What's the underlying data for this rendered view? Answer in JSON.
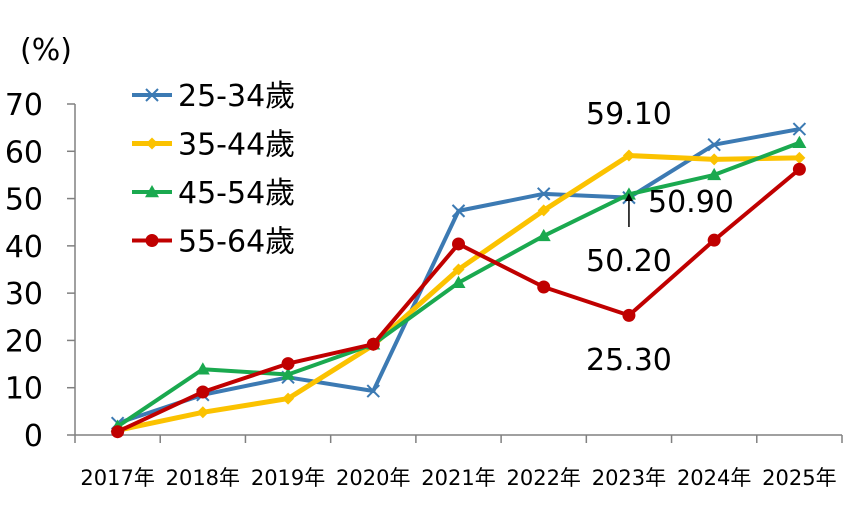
{
  "chart_data": {
    "type": "line",
    "unit": "(%)",
    "ylim": [
      0,
      70
    ],
    "yticks": [
      "0",
      "10",
      "20",
      "30",
      "40",
      "50",
      "60",
      "70"
    ],
    "categories": [
      "2017年",
      "2018年",
      "2019年",
      "2020年",
      "2021年",
      "2022年",
      "2023年",
      "2024年",
      "2025年"
    ],
    "legend_position": "top-left",
    "grid": false,
    "series": [
      {
        "name": "25-34歲",
        "color": "#3c7ab3",
        "marker": "x",
        "values": [
          2.5,
          8.5,
          12.2,
          9.3,
          47.4,
          51.0,
          50.2,
          61.4,
          64.7
        ]
      },
      {
        "name": "35-44歲",
        "color": "#fbc200",
        "marker": "diamond",
        "values": [
          1.0,
          4.8,
          7.7,
          19.0,
          35.0,
          47.5,
          59.1,
          58.3,
          58.6
        ]
      },
      {
        "name": "45-54歲",
        "color": "#1aa94f",
        "marker": "triangle",
        "values": [
          1.8,
          13.9,
          12.8,
          19.2,
          32.2,
          42.1,
          50.9,
          55.0,
          61.8
        ]
      },
      {
        "name": "55-64歲",
        "color": "#c00000",
        "marker": "circle",
        "values": [
          0.7,
          9.1,
          15.1,
          19.2,
          40.4,
          31.3,
          25.3,
          41.2,
          56.2
        ]
      }
    ],
    "annotations": [
      "59.10",
      "50.90",
      "50.20",
      "25.30"
    ]
  }
}
